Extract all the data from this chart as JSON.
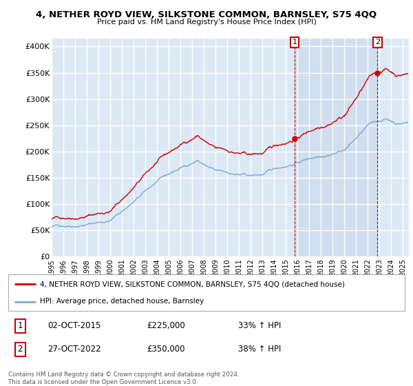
{
  "title": "4, NETHER ROYD VIEW, SILKSTONE COMMON, BARNSLEY, S75 4QQ",
  "subtitle": "Price paid vs. HM Land Registry's House Price Index (HPI)",
  "ylabel_ticks": [
    "£0",
    "£50K",
    "£100K",
    "£150K",
    "£200K",
    "£250K",
    "£300K",
    "£350K",
    "£400K"
  ],
  "ytick_values": [
    0,
    50000,
    100000,
    150000,
    200000,
    250000,
    300000,
    350000,
    400000
  ],
  "ylim": [
    0,
    415000
  ],
  "xlim_start": 1995.0,
  "xlim_end": 2025.5,
  "plot_bg_color": "#dce9f5",
  "shade_color": "#c8d8ec",
  "grid_color": "#ffffff",
  "legend_label_red": "4, NETHER ROYD VIEW, SILKSTONE COMMON, BARNSLEY, S75 4QQ (detached house)",
  "legend_label_blue": "HPI: Average price, detached house, Barnsley",
  "sale1_date": "02-OCT-2015",
  "sale1_price": "£225,000",
  "sale1_pct": "33% ↑ HPI",
  "sale1_x": 2015.75,
  "sale1_y": 225000,
  "sale2_date": "27-OCT-2022",
  "sale2_price": "£350,000",
  "sale2_pct": "38% ↑ HPI",
  "sale2_x": 2022.82,
  "sale2_y": 350000,
  "footer": "Contains HM Land Registry data © Crown copyright and database right 2024.\nThis data is licensed under the Open Government Licence v3.0.",
  "red_color": "#cc0000",
  "blue_color": "#7aaace"
}
